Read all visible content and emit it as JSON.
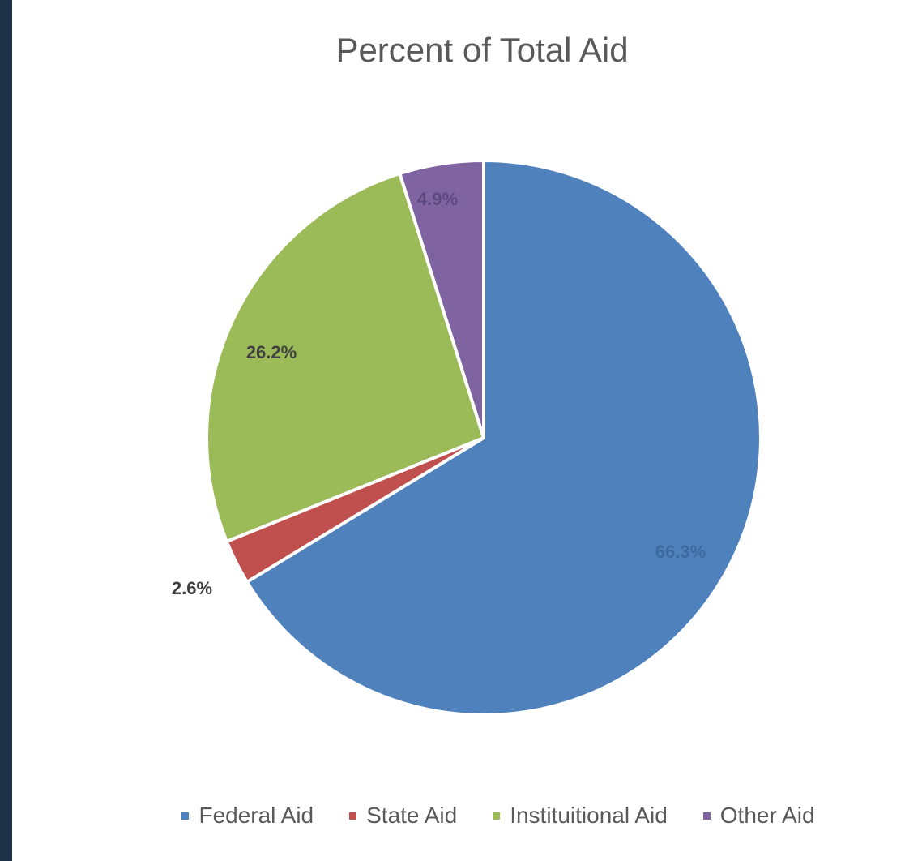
{
  "chart_data": {
    "type": "pie",
    "title": "Percent of Total Aid",
    "categories": [
      "Federal Aid",
      "State Aid",
      "Instituitional Aid",
      "Other Aid"
    ],
    "values": [
      66.3,
      2.6,
      26.2,
      4.9
    ],
    "labels": [
      "66.3%",
      "2.6%",
      "26.2%",
      "4.9%"
    ],
    "colors": [
      "#4f81bd",
      "#c0504d",
      "#9bbb59",
      "#8064a2"
    ],
    "legend_position": "bottom"
  }
}
